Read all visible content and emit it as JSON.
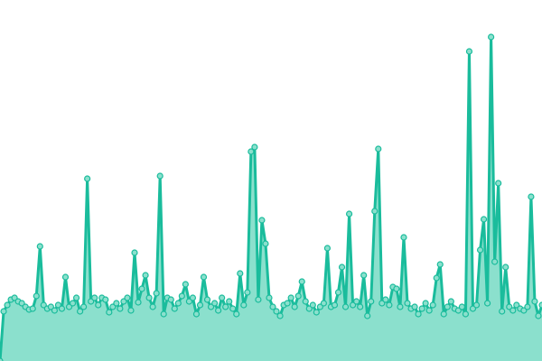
{
  "chart_data": {
    "type": "area",
    "title": "",
    "xlabel": "",
    "ylabel": "",
    "ylim": [
      0,
      400
    ],
    "grid": false,
    "axes_visible": false,
    "colors": {
      "line": "#1abc9c",
      "fill": "#8be0cd",
      "marker_fill": "#8be0cd",
      "marker_stroke": "#1abc9c"
    },
    "values": [
      0,
      55,
      62,
      68,
      70,
      66,
      64,
      60,
      57,
      58,
      72,
      127,
      62,
      58,
      60,
      56,
      62,
      58,
      93,
      60,
      64,
      70,
      55,
      60,
      202,
      66,
      70,
      62,
      70,
      68,
      54,
      60,
      64,
      58,
      66,
      70,
      56,
      120,
      65,
      80,
      95,
      70,
      60,
      75,
      205,
      52,
      70,
      68,
      58,
      64,
      72,
      85,
      66,
      70,
      52,
      62,
      93,
      68,
      60,
      64,
      56,
      70,
      60,
      66,
      58,
      52,
      97,
      62,
      76,
      232,
      237,
      68,
      156,
      130,
      70,
      60,
      55,
      50,
      62,
      64,
      70,
      60,
      72,
      88,
      66,
      58,
      62,
      54,
      60,
      64,
      125,
      60,
      62,
      76,
      104,
      60,
      163,
      62,
      66,
      60,
      95,
      50,
      66,
      166,
      235,
      64,
      68,
      62,
      82,
      80,
      60,
      137,
      64,
      58,
      60,
      52,
      58,
      64,
      56,
      62,
      92,
      107,
      52,
      60,
      66,
      58,
      56,
      60,
      52,
      343,
      58,
      62,
      123,
      157,
      64,
      359,
      110,
      197,
      55,
      104,
      60,
      56,
      62,
      58,
      56,
      60,
      182,
      66,
      50,
      62
    ]
  }
}
